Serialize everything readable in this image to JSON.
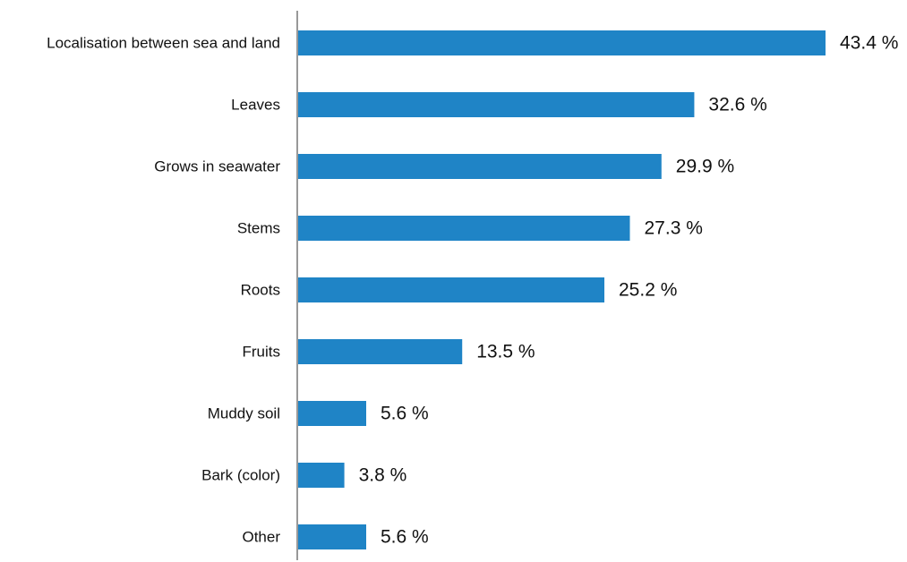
{
  "chart_data": {
    "type": "bar",
    "orientation": "horizontal",
    "categories": [
      "Localisation between sea and land",
      "Leaves",
      "Grows in seawater",
      "Stems",
      "Roots",
      "Fruits",
      "Muddy soil",
      "Bark (color)",
      "Other"
    ],
    "values": [
      43.4,
      32.6,
      29.9,
      27.3,
      25.2,
      13.5,
      5.6,
      3.8,
      5.6
    ],
    "value_labels": [
      "43.4 %",
      "32.6 %",
      "29.9 %",
      "27.3 %",
      "25.2 %",
      "13.5 %",
      "5.6 %",
      "3.8 %",
      "5.6 %"
    ],
    "unit": "%",
    "title": "",
    "xlabel": "",
    "ylabel": "",
    "xlim": [
      0,
      43.4
    ],
    "grid": false,
    "legend": "none",
    "colors": {
      "bar": "#1f84c6",
      "axis": "#555555",
      "text": "#111111"
    }
  }
}
